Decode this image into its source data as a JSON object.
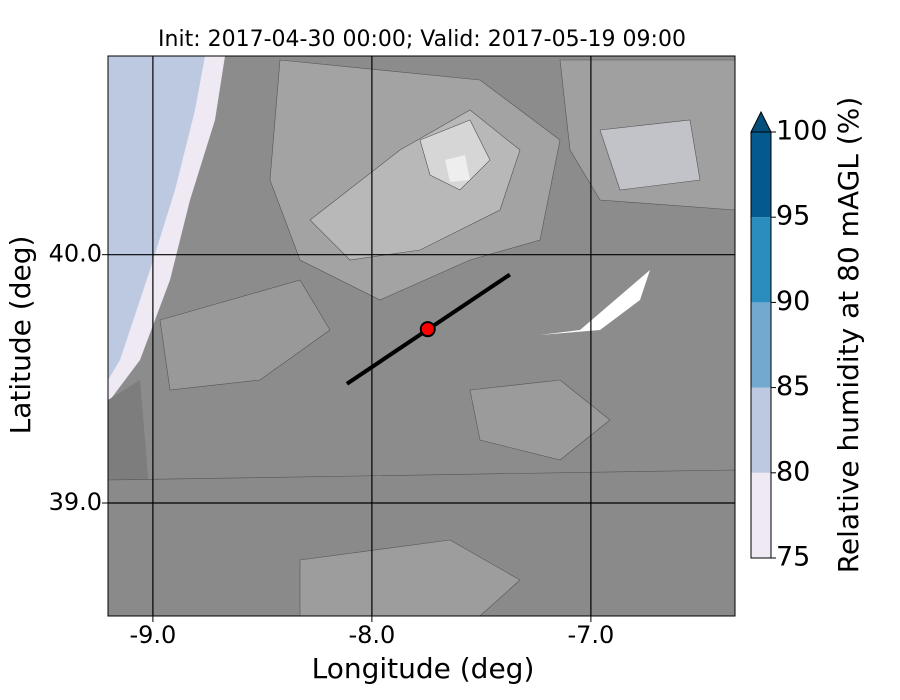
{
  "title": "Init: 2017-04-30 00:00; Valid: 2017-05-19 09:00",
  "map": {
    "xlabel": "Longitude (deg)",
    "ylabel": "Latitude (deg)",
    "xlim": [
      -9.205,
      -6.342
    ],
    "ylim": [
      38.545,
      40.8
    ],
    "xticks": [
      {
        "value": -9,
        "label": "-9.0"
      },
      {
        "value": -8,
        "label": "-8.0"
      },
      {
        "value": -7,
        "label": "-7.0"
      }
    ],
    "yticks": [
      {
        "value": 39,
        "label": "39.0"
      },
      {
        "value": 40,
        "label": "40.0"
      }
    ],
    "transect": {
      "lon": [
        -8.114,
        -7.37
      ],
      "lat": [
        39.48,
        39.92
      ]
    },
    "point": {
      "lon": -7.745,
      "lat": 39.7
    }
  },
  "colorbar": {
    "label": "Relative humidity at 80 mAGL (%)",
    "levels": [
      75,
      80,
      85,
      90,
      95,
      100
    ],
    "colors": [
      "#efe9f3",
      "#bdc9e1",
      "#74a9cf",
      "#2b8cbe",
      "#045a8d"
    ],
    "extend_color": "#034e7b"
  }
}
